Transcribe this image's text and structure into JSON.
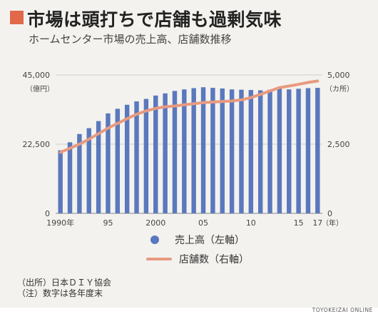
{
  "header": {
    "title": "市場は頭打ちで店舗も過剰気味",
    "subtitle": "ホームセンター市場の売上高、店舗数推移"
  },
  "chart_data": {
    "type": "bar+line",
    "title": "ホームセンター市場の売上高、店舗数推移",
    "x_labels": [
      "1990年",
      "95",
      "2000",
      "05",
      "10",
      "15",
      "17"
    ],
    "x_label_years": [
      1990,
      1995,
      2000,
      2005,
      2010,
      2015,
      2017
    ],
    "x_unit": "（年）",
    "years": [
      1990,
      1991,
      1992,
      1993,
      1994,
      1995,
      1996,
      1997,
      1998,
      1999,
      2000,
      2001,
      2002,
      2003,
      2004,
      2005,
      2006,
      2007,
      2008,
      2009,
      2010,
      2011,
      2012,
      2013,
      2014,
      2015,
      2016,
      2017
    ],
    "left_axis": {
      "unit": "（億円）",
      "ticks": [
        0,
        22500,
        45000
      ],
      "tick_labels": [
        "0",
        "22,500",
        "45,000"
      ],
      "ylim": [
        0,
        45000
      ]
    },
    "right_axis": {
      "unit": "（カ所）",
      "ticks": [
        0,
        2500,
        5000
      ],
      "tick_labels": [
        "0",
        "2,500",
        "5,000"
      ],
      "ylim": [
        0,
        5000
      ]
    },
    "series": [
      {
        "name": "売上高（左軸）",
        "type": "bar",
        "axis": "left",
        "color": "#5a78bd",
        "values": [
          20500,
          23100,
          25800,
          27700,
          30000,
          32500,
          34000,
          35300,
          36400,
          37200,
          38300,
          39000,
          39800,
          40300,
          40700,
          41000,
          40800,
          40600,
          40300,
          40200,
          40100,
          40000,
          40200,
          40600,
          40300,
          40500,
          40700,
          40800
        ]
      },
      {
        "name": "店舗数（右軸）",
        "type": "line",
        "axis": "right",
        "color": "#e89a80",
        "values": [
          2200,
          2350,
          2500,
          2680,
          2880,
          3080,
          3250,
          3420,
          3580,
          3700,
          3790,
          3850,
          3880,
          3920,
          3960,
          4000,
          4020,
          4040,
          4060,
          4100,
          4180,
          4300,
          4420,
          4540,
          4600,
          4660,
          4730,
          4780
        ]
      }
    ],
    "legend_position": "bottom",
    "grid": true
  },
  "legend": {
    "bar_label": "売上高（左軸）",
    "line_label": "店舗数（右軸）"
  },
  "notes": {
    "source": "（出所）日本ＤＩＹ協会",
    "note": "（注）数字は各年度末"
  },
  "credit": "TOYOKEIZAI ONLINE"
}
